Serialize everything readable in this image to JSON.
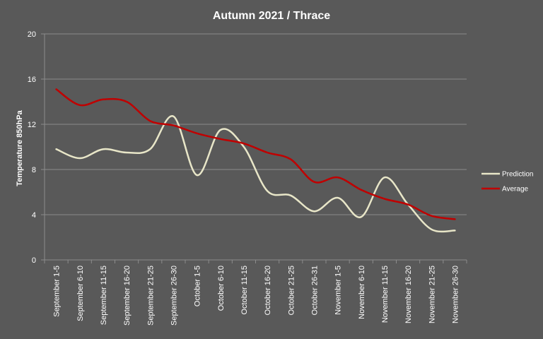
{
  "chart_data": {
    "type": "line",
    "title": "Autumn 2021 / Thrace",
    "xlabel": "",
    "ylabel": "Temperature 850hPa",
    "ylim": [
      0,
      20
    ],
    "yticks": [
      0,
      4,
      8,
      12,
      16,
      20
    ],
    "grid": true,
    "legend_position": "right",
    "categories": [
      "September 1-5",
      "September 6-10",
      "September 11-15",
      "September 16-20",
      "September 21-25",
      "September 26-30",
      "October 1-5",
      "October 6-10",
      "October 11-15",
      "October 16-20",
      "October 21-25",
      "October 26-31",
      "November 1-5",
      "November 6-10",
      "November 11-15",
      "November 16-20",
      "November 21-25",
      "November 26-30"
    ],
    "series": [
      {
        "name": "Prediction",
        "color": "#e8e6c8",
        "values": [
          9.8,
          9.0,
          9.8,
          9.5,
          9.8,
          12.7,
          7.5,
          11.5,
          10.0,
          6.1,
          5.7,
          4.3,
          5.5,
          3.8,
          7.3,
          4.9,
          2.7,
          2.6
        ]
      },
      {
        "name": "Average",
        "color": "#c00000",
        "values": [
          15.1,
          13.7,
          14.2,
          14.0,
          12.3,
          11.9,
          11.2,
          10.7,
          10.3,
          9.5,
          8.9,
          6.9,
          7.3,
          6.2,
          5.4,
          4.9,
          3.9,
          3.6
        ]
      }
    ]
  }
}
